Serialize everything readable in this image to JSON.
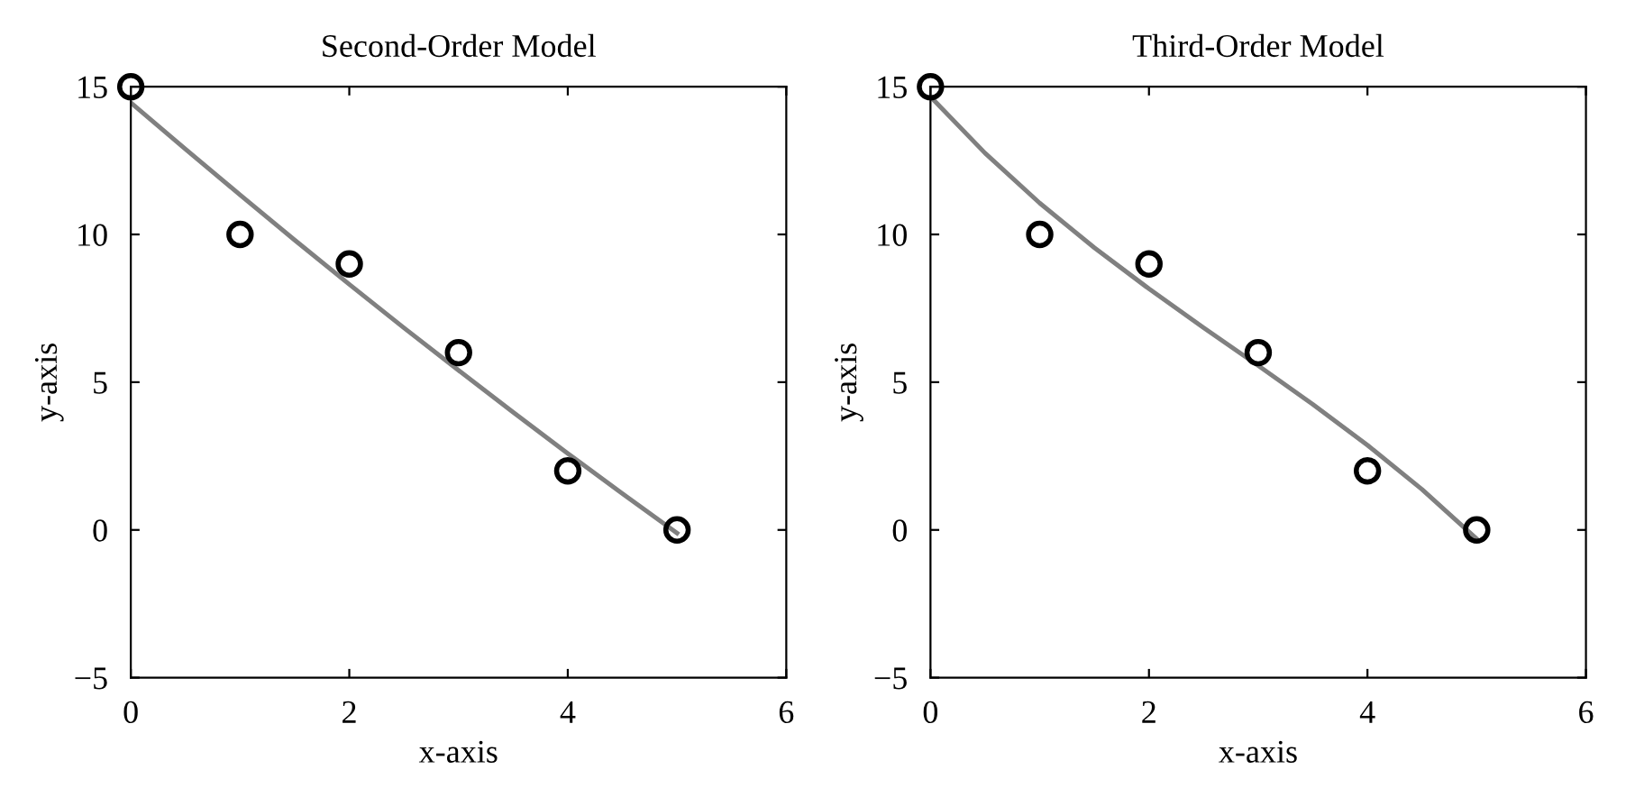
{
  "chart_data": [
    {
      "type": "scatter",
      "title": "Second-Order Model",
      "xlabel": "x-axis",
      "ylabel": "y-axis",
      "xlim": [
        0,
        6
      ],
      "ylim": [
        -5,
        15
      ],
      "xticks": [
        0,
        2,
        4,
        6
      ],
      "yticks": [
        {
          "value": -5,
          "label": "−5"
        },
        0,
        5,
        10,
        15
      ],
      "grid": false,
      "legend": false,
      "series": [
        {
          "color": "#000000",
          "marker": "circle",
          "x": [
            0,
            1,
            2,
            3,
            4,
            5
          ],
          "values": [
            15,
            10,
            9,
            6,
            2,
            0
          ]
        },
        {
          "type": "line",
          "color": "#808080",
          "marker": "none",
          "line_style": "solid",
          "x": [
            0,
            0.5,
            1,
            1.5,
            2,
            2.5,
            3,
            3.5,
            4,
            4.5,
            5
          ],
          "values": [
            14.46,
            12.89,
            11.34,
            9.81,
            8.31,
            6.84,
            5.4,
            3.98,
            2.59,
            1.23,
            -0.11
          ]
        }
      ]
    },
    {
      "type": "scatter",
      "title": "Third-Order Model",
      "xlabel": "x-axis",
      "ylabel": "y-axis",
      "xlim": [
        0,
        6
      ],
      "ylim": [
        -5,
        15
      ],
      "xticks": [
        0,
        2,
        4,
        6
      ],
      "yticks": [
        {
          "value": -5,
          "label": "−5"
        },
        0,
        5,
        10,
        15
      ],
      "grid": false,
      "legend": false,
      "series": [
        {
          "color": "#000000",
          "marker": "circle",
          "x": [
            0,
            1,
            2,
            3,
            4,
            5
          ],
          "values": [
            15,
            10,
            9,
            6,
            2,
            0
          ]
        },
        {
          "type": "line",
          "color": "#808080",
          "marker": "none",
          "line_style": "solid",
          "x": [
            0,
            0.5,
            1,
            1.5,
            2,
            2.5,
            3,
            3.5,
            4,
            4.5,
            5
          ],
          "values": [
            14.66,
            12.75,
            11.06,
            9.55,
            8.16,
            6.84,
            5.56,
            4.25,
            2.87,
            1.37,
            -0.3
          ]
        }
      ]
    }
  ]
}
